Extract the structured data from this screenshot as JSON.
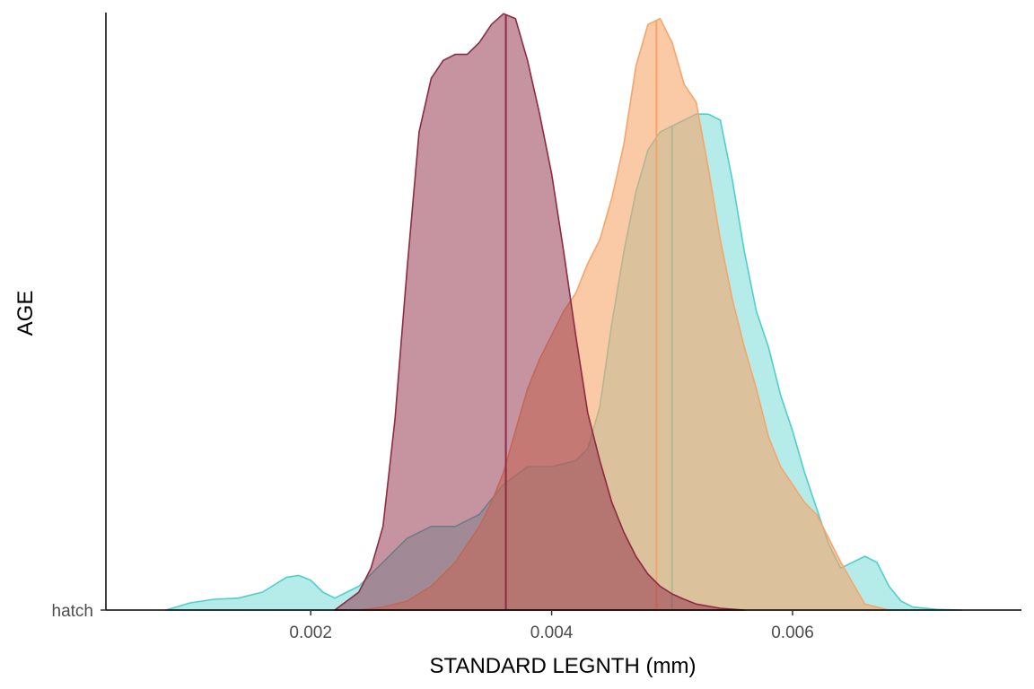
{
  "chart_data": {
    "type": "area",
    "subtype": "density-ridge",
    "xlabel": "STANDARD LEGNTH (mm)",
    "ylabel": "AGE",
    "xlim": [
      0.0003,
      0.0079
    ],
    "ylim": [
      0,
      1
    ],
    "x_ticks": [
      0.002,
      0.004,
      0.006
    ],
    "x_tick_labels": [
      "0.002",
      "0.004",
      "0.006"
    ],
    "y_categories": [
      "hatch"
    ],
    "grid": false,
    "legend": "none",
    "series": [
      {
        "color": "#4FCFCB",
        "fill_opacity": 0.42,
        "median_line": 0.005,
        "x": [
          0.0008,
          0.001,
          0.0012,
          0.0014,
          0.0016,
          0.0018,
          0.0019,
          0.002,
          0.0021,
          0.0022,
          0.0024,
          0.0026,
          0.0028,
          0.003,
          0.0031,
          0.0032,
          0.0034,
          0.0036,
          0.0038,
          0.004,
          0.0042,
          0.0043,
          0.0044,
          0.0045,
          0.0046,
          0.0047,
          0.0048,
          0.0049,
          0.005,
          0.0051,
          0.0052,
          0.0053,
          0.0054,
          0.0055,
          0.0056,
          0.0057,
          0.0058,
          0.0059,
          0.006,
          0.0061,
          0.0062,
          0.0063,
          0.0064,
          0.0065,
          0.0066,
          0.0067,
          0.0068,
          0.0069,
          0.007,
          0.0072,
          0.0074
        ],
        "y": [
          0.0,
          0.012,
          0.018,
          0.02,
          0.03,
          0.055,
          0.058,
          0.05,
          0.03,
          0.02,
          0.04,
          0.08,
          0.12,
          0.14,
          0.14,
          0.14,
          0.16,
          0.21,
          0.24,
          0.24,
          0.25,
          0.27,
          0.34,
          0.48,
          0.6,
          0.7,
          0.77,
          0.8,
          0.81,
          0.82,
          0.83,
          0.83,
          0.82,
          0.72,
          0.6,
          0.5,
          0.44,
          0.36,
          0.3,
          0.23,
          0.17,
          0.11,
          0.07,
          0.08,
          0.09,
          0.08,
          0.04,
          0.015,
          0.005,
          0.001,
          0.0
        ]
      },
      {
        "color": "#F6A56A",
        "fill_opacity": 0.6,
        "median_line": 0.00487,
        "x": [
          0.0024,
          0.0026,
          0.0028,
          0.003,
          0.0032,
          0.0034,
          0.0035,
          0.0036,
          0.0037,
          0.0038,
          0.0039,
          0.004,
          0.0041,
          0.0042,
          0.0043,
          0.0044,
          0.0045,
          0.0046,
          0.0047,
          0.0048,
          0.0049,
          0.005,
          0.0051,
          0.0052,
          0.0053,
          0.0054,
          0.0055,
          0.0056,
          0.0057,
          0.0058,
          0.0059,
          0.006,
          0.0061,
          0.0062,
          0.0063,
          0.0064,
          0.0065,
          0.0066,
          0.0068
        ],
        "y": [
          0.0,
          0.005,
          0.015,
          0.04,
          0.08,
          0.14,
          0.18,
          0.23,
          0.3,
          0.37,
          0.42,
          0.46,
          0.5,
          0.53,
          0.58,
          0.62,
          0.69,
          0.78,
          0.91,
          0.98,
          0.99,
          0.95,
          0.88,
          0.85,
          0.74,
          0.62,
          0.52,
          0.44,
          0.37,
          0.29,
          0.24,
          0.21,
          0.18,
          0.16,
          0.12,
          0.08,
          0.045,
          0.01,
          0.0
        ]
      },
      {
        "color": "#8E2A43",
        "fill_opacity": 0.5,
        "median_line": 0.00362,
        "x": [
          0.0022,
          0.0024,
          0.0025,
          0.0026,
          0.0027,
          0.0028,
          0.0029,
          0.003,
          0.0031,
          0.0032,
          0.0033,
          0.0034,
          0.0035,
          0.0036,
          0.0037,
          0.0038,
          0.0039,
          0.004,
          0.0041,
          0.0042,
          0.0043,
          0.0044,
          0.0045,
          0.0046,
          0.0047,
          0.0048,
          0.0049,
          0.005,
          0.0051,
          0.0052,
          0.0054,
          0.0056
        ],
        "y": [
          0.0,
          0.03,
          0.07,
          0.14,
          0.32,
          0.57,
          0.8,
          0.89,
          0.92,
          0.93,
          0.93,
          0.95,
          0.98,
          0.998,
          0.99,
          0.92,
          0.83,
          0.73,
          0.6,
          0.46,
          0.33,
          0.25,
          0.18,
          0.13,
          0.09,
          0.06,
          0.04,
          0.027,
          0.018,
          0.01,
          0.003,
          0.0
        ]
      }
    ]
  }
}
